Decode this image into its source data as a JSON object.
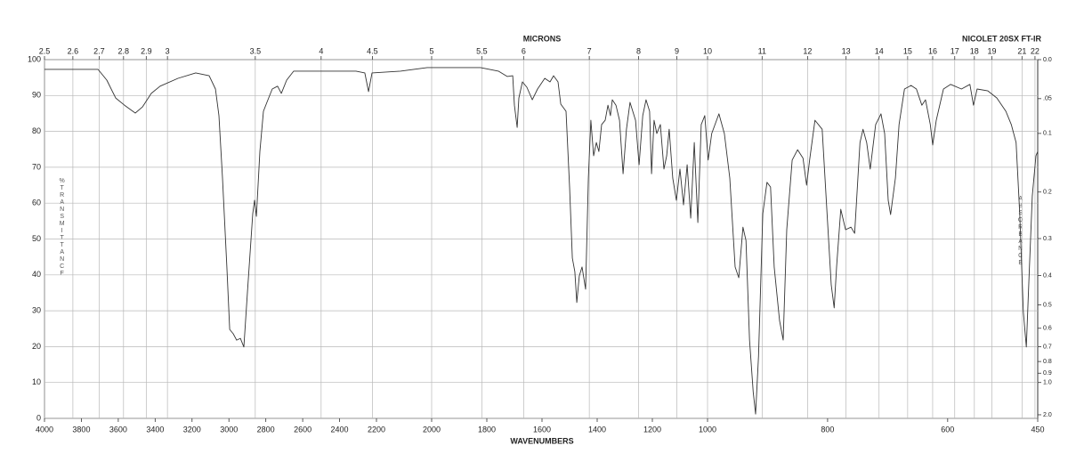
{
  "chart_data": {
    "type": "line",
    "title": "NICOLET 20SX FT-IR",
    "x_label": "WAVENUMBERS",
    "top_axis_label": "MICRONS",
    "y_label": "%TRANSMITTANCE",
    "y2_label": "ABSORBANCE",
    "color": "#333333",
    "grid": true,
    "xlim": [
      4000,
      450
    ],
    "xscale_breaks": [
      2200,
      1000
    ],
    "ylim": [
      0,
      100
    ],
    "xticks": [
      4000,
      3800,
      3600,
      3400,
      3200,
      3000,
      2800,
      2600,
      2400,
      2200,
      2000,
      1800,
      1600,
      1400,
      1200,
      1000,
      800,
      600,
      450
    ],
    "yticks": [
      0,
      10,
      20,
      30,
      40,
      50,
      60,
      70,
      80,
      90,
      100
    ],
    "micron_ticks": [
      2.5,
      2.6,
      2.7,
      2.8,
      2.9,
      3,
      3.5,
      4,
      4.5,
      5,
      5.5,
      6,
      7,
      8,
      9,
      10,
      11,
      12,
      13,
      14,
      15,
      16,
      17,
      18,
      19,
      21,
      22
    ],
    "absorbance_ticks": [
      {
        "value": 0,
        "label": "0.0"
      },
      {
        "value": 0.05,
        "label": ".05"
      },
      0.1,
      0.2,
      0.3,
      0.4,
      0.5,
      0.6,
      0.7,
      0.8,
      0.9,
      {
        "value": 1,
        "label": "1.0"
      },
      {
        "value": 2,
        "label": "2.0"
      }
    ],
    "x": [
      4000,
      3710,
      3662,
      3614,
      3566,
      3508,
      3469,
      3421,
      3373,
      3276,
      3180,
      3107,
      3073,
      3054,
      3035,
      3011,
      2996,
      2977,
      2958,
      2938,
      2919,
      2900,
      2871,
      2861,
      2851,
      2832,
      2813,
      2794,
      2765,
      2736,
      2716,
      2687,
      2649,
      2311,
      2263,
      2243,
      2224,
      2113,
      2016,
      1823,
      1758,
      1726,
      1706,
      1700,
      1690,
      1684,
      1671,
      1655,
      1635,
      1616,
      1590,
      1571,
      1558,
      1542,
      1532,
      1513,
      1500,
      1490,
      1481,
      1474,
      1465,
      1455,
      1442,
      1432,
      1423,
      1413,
      1403,
      1394,
      1384,
      1371,
      1361,
      1352,
      1345,
      1332,
      1319,
      1306,
      1294,
      1281,
      1261,
      1248,
      1235,
      1223,
      1210,
      1203,
      1194,
      1184,
      1171,
      1158,
      1148,
      1139,
      1126,
      1113,
      1100,
      1087,
      1074,
      1061,
      1048,
      1035,
      1023,
      1010,
      999,
      993,
      981,
      972,
      963,
      954,
      948,
      941,
      936,
      930,
      924,
      920,
      915,
      908,
      901,
      895,
      889,
      880,
      874,
      868,
      859,
      850,
      841,
      835,
      830,
      821,
      809,
      800,
      794,
      789,
      785,
      778,
      770,
      761,
      755,
      746,
      741,
      735,
      729,
      720,
      711,
      705,
      699,
      695,
      687,
      681,
      672,
      661,
      652,
      643,
      637,
      629,
      625,
      619,
      607,
      595,
      577,
      563,
      557,
      551,
      533,
      518,
      503,
      494,
      486,
      480,
      474,
      469,
      465,
      459,
      453,
      450
    ],
    "values": [
      97.3,
      97.3,
      94.3,
      89.3,
      87.3,
      85.1,
      86.8,
      90.6,
      92.6,
      94.8,
      96.3,
      95.5,
      91.8,
      84.4,
      67,
      42.2,
      24.8,
      23.6,
      21.8,
      22.3,
      19.9,
      34.7,
      57.1,
      60.8,
      56.3,
      74.4,
      85.6,
      88.1,
      91.8,
      92.6,
      90.6,
      94.3,
      96.8,
      96.8,
      96.3,
      91.1,
      96.3,
      96.8,
      97.8,
      97.8,
      96.8,
      95.3,
      95.5,
      87.3,
      81.1,
      89.3,
      93.8,
      92.3,
      88.8,
      91.8,
      94.8,
      93.8,
      95.5,
      93.8,
      87.6,
      85.6,
      64.5,
      44.7,
      40.9,
      32.3,
      39.7,
      42.2,
      36,
      67,
      83.1,
      73.2,
      76.9,
      74.4,
      81.9,
      83.1,
      87.3,
      84.4,
      88.8,
      87.3,
      83.1,
      68.2,
      80.6,
      88.1,
      83.1,
      70.7,
      84.4,
      88.8,
      85.6,
      68.2,
      83.1,
      79.4,
      81.9,
      69.5,
      73.2,
      80.6,
      67,
      60.8,
      69.5,
      59.5,
      70.7,
      55.8,
      76.9,
      54.6,
      81.9,
      84.4,
      72,
      79.4,
      84.9,
      79.4,
      67,
      42.2,
      39.2,
      53.3,
      49.6,
      21.8,
      7.4,
      1.2,
      17.4,
      57.1,
      65.8,
      64.5,
      42.2,
      27.3,
      21.8,
      52.6,
      72,
      74.9,
      72.5,
      65,
      72,
      83.1,
      80.6,
      54.6,
      37.2,
      30.8,
      42.2,
      58.3,
      52.6,
      53.3,
      51.6,
      76.9,
      80.6,
      76.9,
      69.5,
      81.9,
      84.9,
      79.4,
      60.8,
      56.8,
      67,
      81.9,
      91.8,
      92.8,
      91.8,
      87.3,
      88.8,
      81.9,
      76.2,
      83.1,
      91.8,
      93.1,
      91.8,
      93.1,
      87.3,
      91.8,
      91.3,
      89.3,
      85.6,
      81.9,
      76.9,
      57.1,
      29.8,
      19.9,
      37.2,
      62,
      73.2,
      74.4
    ]
  }
}
